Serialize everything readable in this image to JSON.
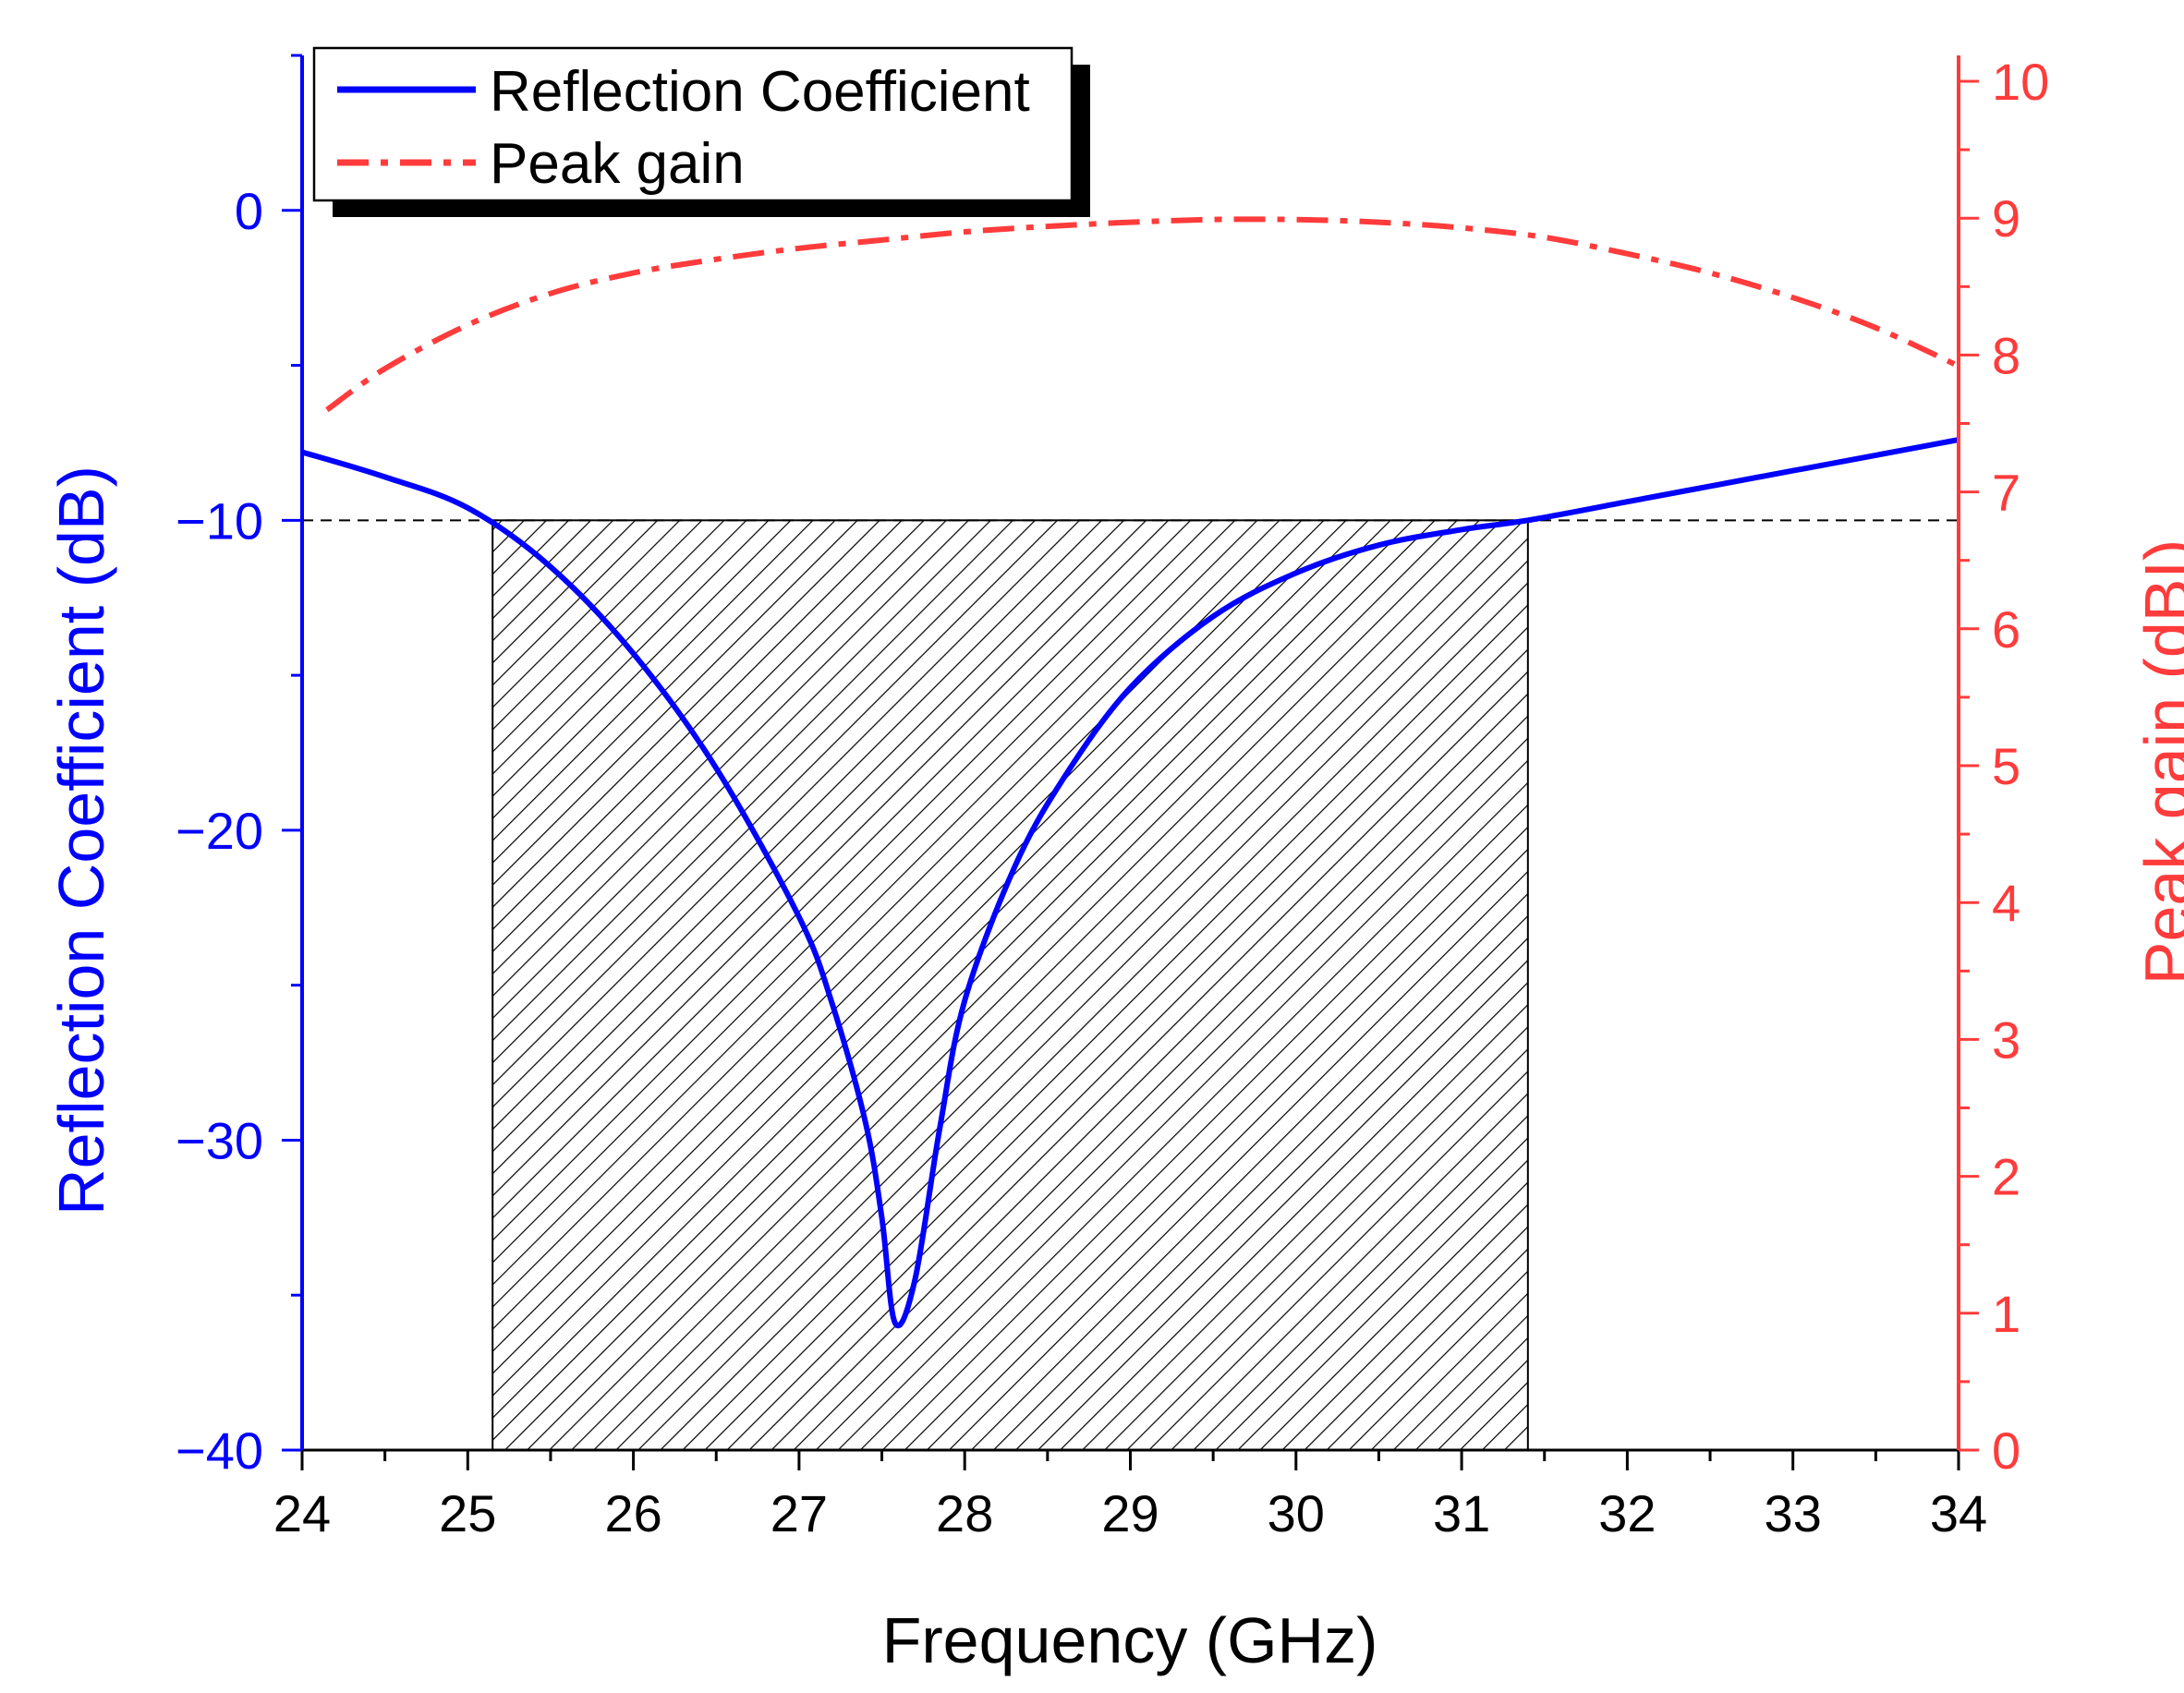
{
  "colors": {
    "reflection": "#0000ff",
    "gain": "#ff3b3b",
    "frame": "#000000",
    "hatch": "#000000"
  },
  "chart_data": {
    "type": "line",
    "title": "",
    "xlabel": "Frequency (GHz)",
    "ylabel_left": "Reflection Coefficient (dB)",
    "ylabel_right": "Peak gain (dBI)",
    "xlim": [
      24,
      34
    ],
    "ylim_left": [
      -40,
      5
    ],
    "ylim_right": [
      0,
      10
    ],
    "x_ticks": [
      "24",
      "25",
      "26",
      "27",
      "28",
      "29",
      "30",
      "31",
      "32",
      "33",
      "34"
    ],
    "y_left_ticks": [
      "0",
      "−10",
      "−20",
      "−30",
      "−40"
    ],
    "y_right_ticks": [
      "0",
      "1",
      "2",
      "3",
      "4",
      "5",
      "6",
      "7",
      "8",
      "9",
      "10"
    ],
    "threshold": {
      "y": -10,
      "style": "dashed"
    },
    "shaded_band": {
      "x_start": 25.15,
      "x_end": 31.4,
      "y_top": -10,
      "y_bottom": -40,
      "pattern": "diagonal hatch"
    },
    "legend": {
      "position": "top-left",
      "entries": [
        {
          "name": "Reflection Coefficient",
          "style": "solid"
        },
        {
          "name": "Peak gain",
          "style": "dash-dot"
        }
      ]
    },
    "series": [
      {
        "name": "Reflection Coefficient",
        "axis": "left",
        "style": "solid",
        "x": [
          24.0,
          24.5,
          25.0,
          25.5,
          26.0,
          26.5,
          27.0,
          27.2,
          27.4,
          27.5,
          27.58,
          27.7,
          27.85,
          28.0,
          28.3,
          28.6,
          29.0,
          29.5,
          30.0,
          30.5,
          31.0,
          31.4,
          32.0,
          32.5,
          33.0,
          33.5,
          34.0
        ],
        "y": [
          -7.8,
          -8.6,
          -9.6,
          -11.5,
          -14.3,
          -18.0,
          -22.8,
          -25.6,
          -29.4,
          -32.5,
          -35.9,
          -34.5,
          -29.6,
          -25.5,
          -21.2,
          -18.3,
          -15.4,
          -13.1,
          -11.7,
          -10.8,
          -10.3,
          -10.0,
          -9.4,
          -8.9,
          -8.4,
          -7.9,
          -7.4
        ]
      },
      {
        "name": "Peak gain",
        "axis": "right",
        "style": "dash-dot",
        "x": [
          24.15,
          24.5,
          25.0,
          25.5,
          26.0,
          26.5,
          27.0,
          27.5,
          28.0,
          28.5,
          29.0,
          29.5,
          30.0,
          30.5,
          31.0,
          31.5,
          32.0,
          32.5,
          33.0,
          33.5,
          34.0
        ],
        "y": [
          7.6,
          7.9,
          8.22,
          8.45,
          8.6,
          8.7,
          8.78,
          8.84,
          8.9,
          8.94,
          8.97,
          8.99,
          8.99,
          8.97,
          8.93,
          8.86,
          8.74,
          8.6,
          8.42,
          8.2,
          7.92
        ]
      }
    ]
  }
}
